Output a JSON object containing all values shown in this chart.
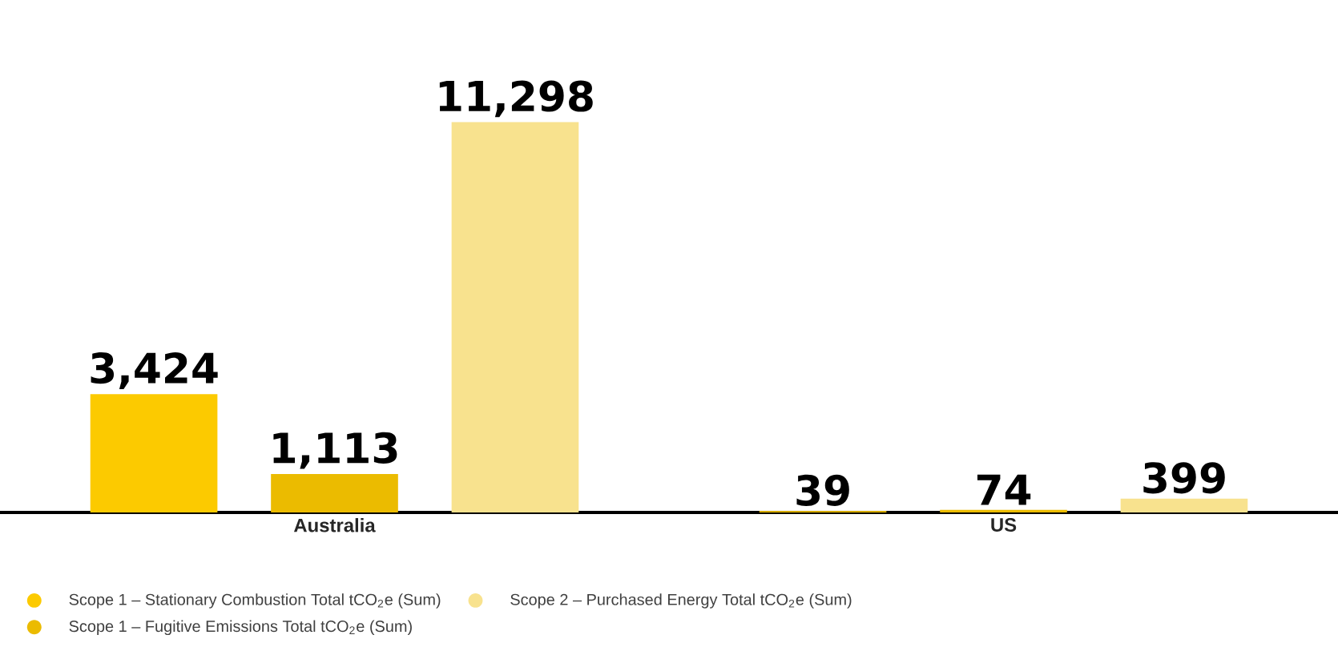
{
  "chart_data": {
    "type": "bar",
    "categories": [
      "Australia",
      "US"
    ],
    "series": [
      {
        "name": "Scope 1 – Stationary Combustion Total tCO$_{2}$e (Sum)",
        "color": "#fcca00",
        "values": [
          3424,
          39
        ],
        "value_labels": [
          "3,424",
          "39"
        ]
      },
      {
        "name": "Scope 1 – Fugitive Emissions Total tCO$_{2}$e (Sum)",
        "color": "#ebbb00",
        "values": [
          1113,
          74
        ],
        "value_labels": [
          "1,113",
          "74"
        ]
      },
      {
        "name": "Scope 2 – Purchased Energy Total tCO$_{2}$e (Sum)",
        "color": "#f8e28e",
        "values": [
          11298,
          399
        ],
        "value_labels": [
          "11,298",
          "399"
        ]
      }
    ],
    "legend": "bottom left",
    "grid": false,
    "tick_labels": "x"
  }
}
